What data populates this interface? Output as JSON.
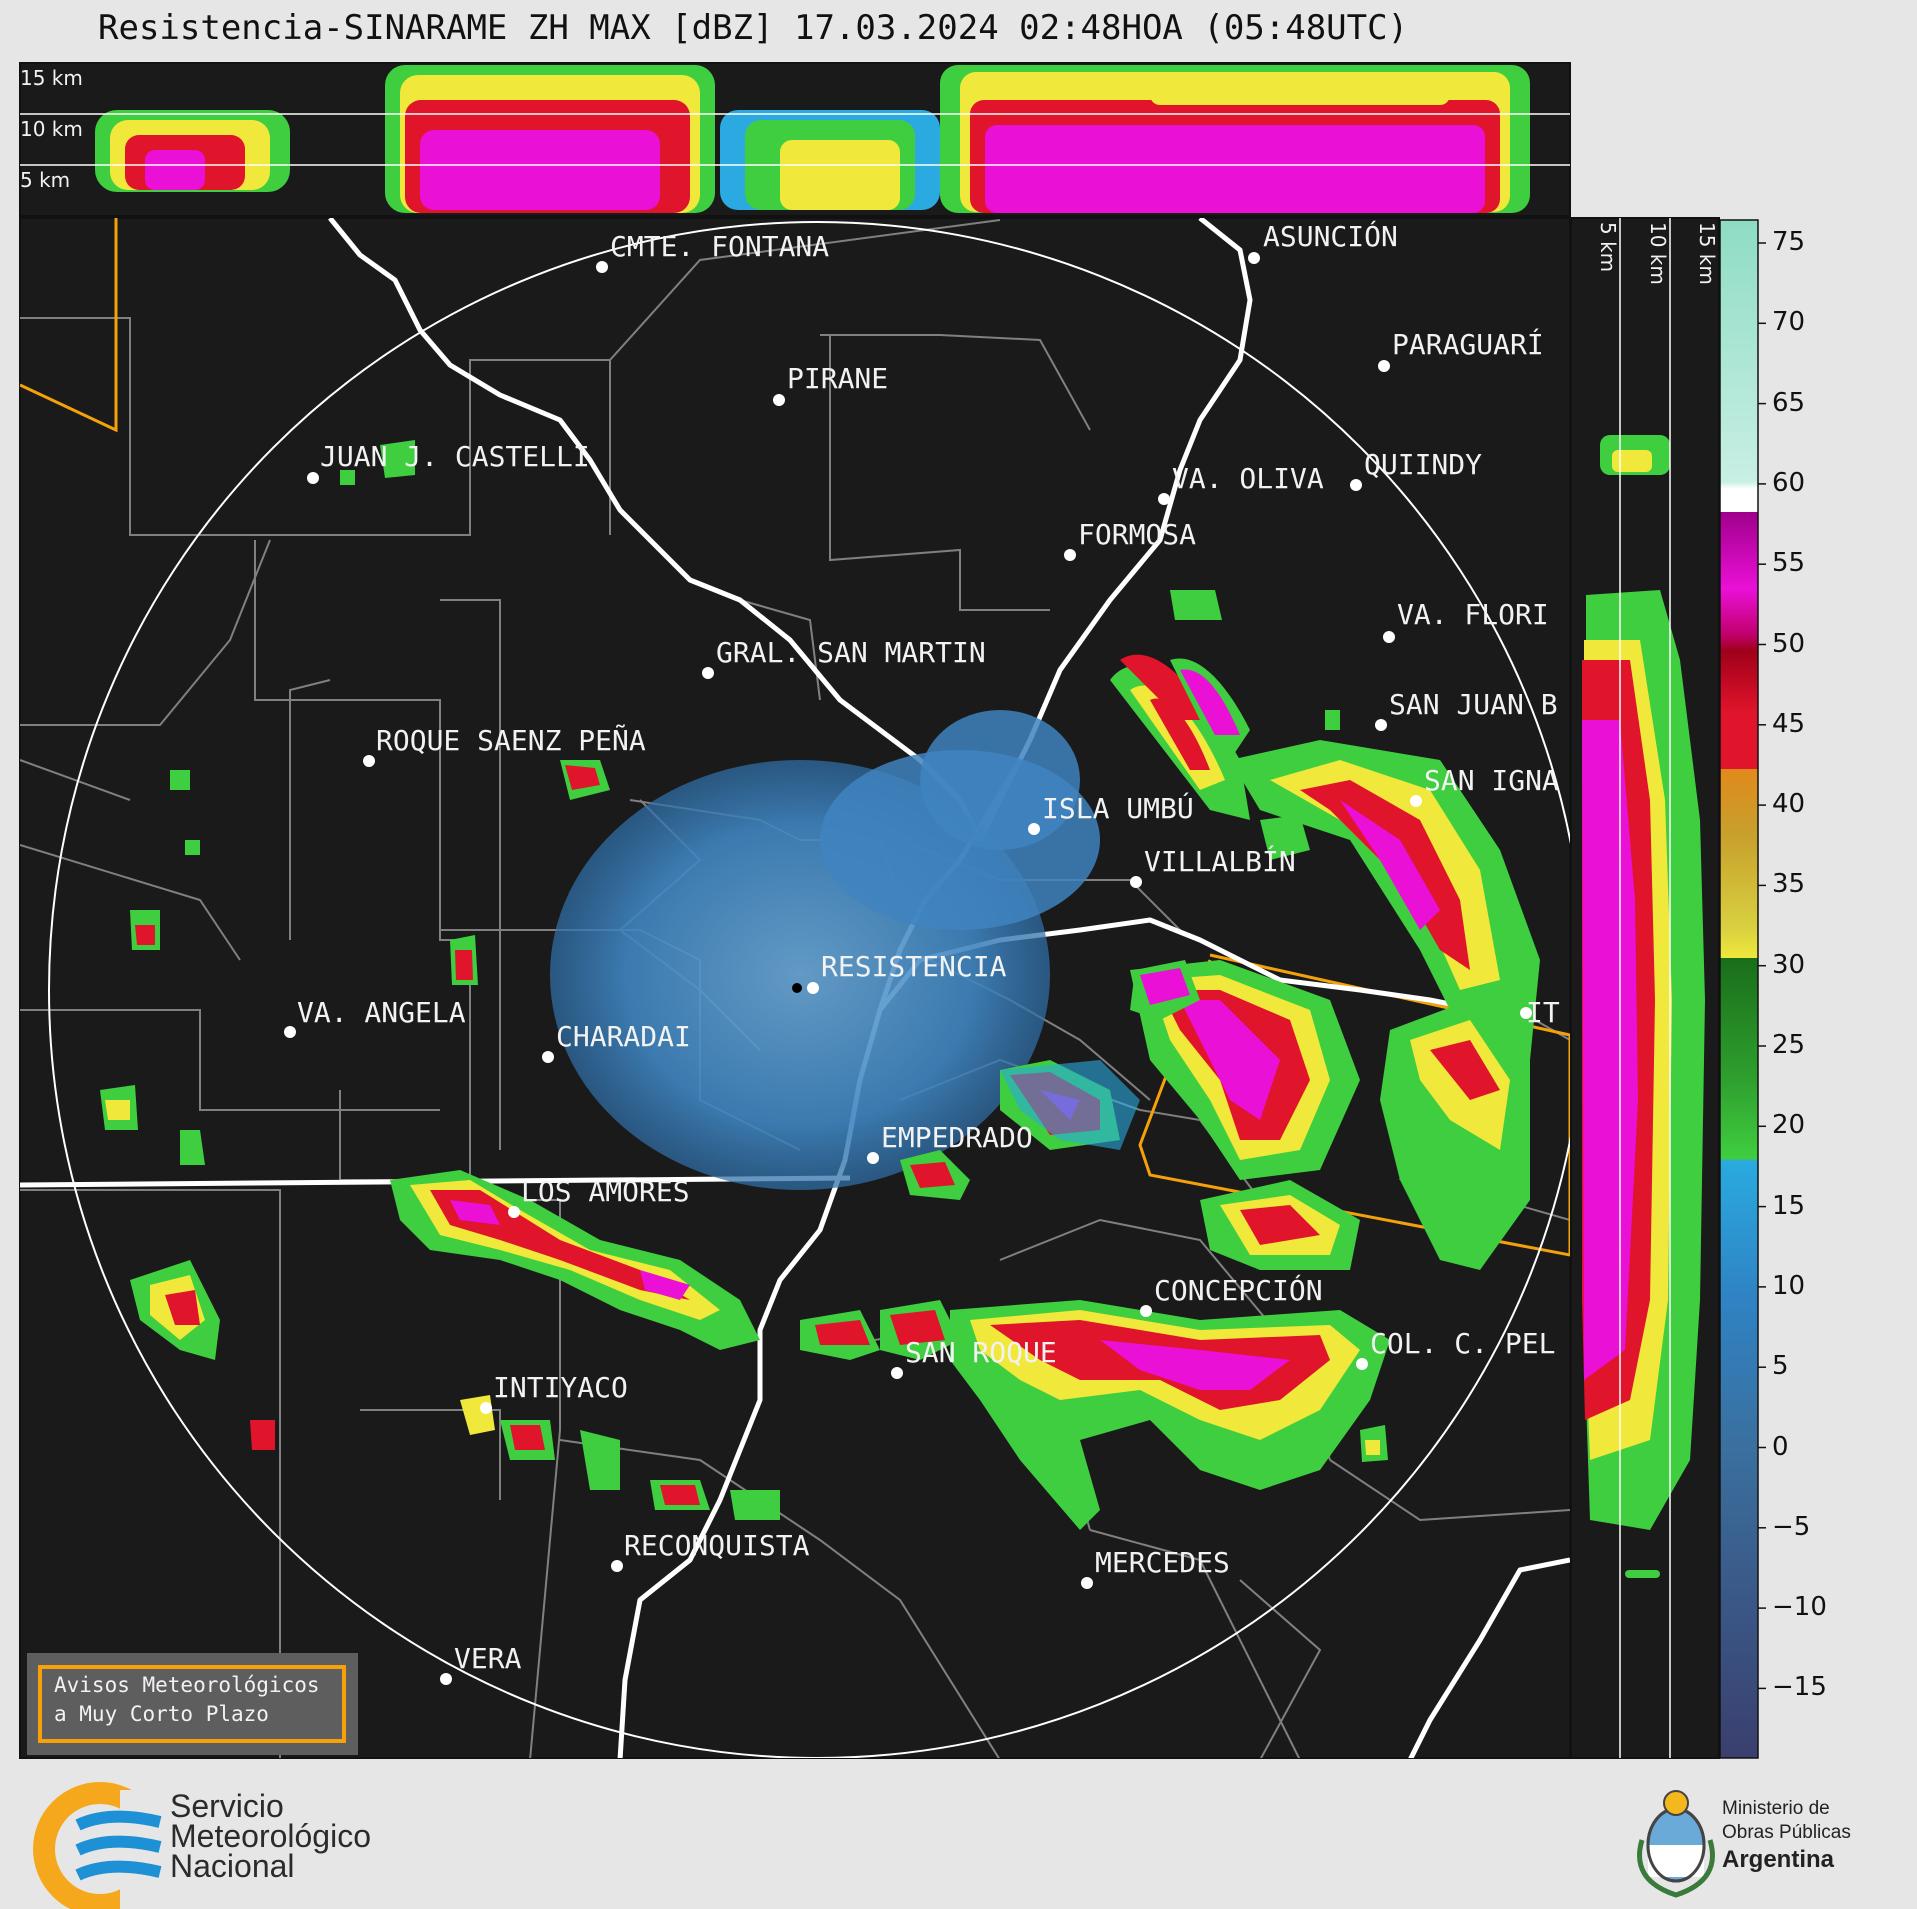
{
  "title": "Resistencia-SINARAME ZH MAX [dBZ] 17.03.2024 02:48HOA (05:48UTC)",
  "height_panel_labels": [
    "15 km",
    "10 km",
    "5 km"
  ],
  "side_panel_labels": [
    "5 km",
    "10 km",
    "15 km"
  ],
  "colorbar": {
    "ticks": [
      "75",
      "70",
      "65",
      "60",
      "55",
      "50",
      "45",
      "40",
      "35",
      "30",
      "25",
      "20",
      "15",
      "10",
      "5",
      "0",
      "−5",
      "−10",
      "−15"
    ],
    "colors": {
      "low": "#3a4170",
      "blue": "#2f83c4",
      "cyan": "#2aaae0",
      "green": "#3fce3f",
      "dark_green": "#1a6e1a",
      "yellow": "#f0e83a",
      "olive": "#b6b23c",
      "orange": "#e08a1c",
      "red": "#e0142a",
      "dark_red": "#a0001a",
      "magenta": "#ea10d6",
      "purple": "#a0008c",
      "white": "#ffffff",
      "mint": "#8edcc4"
    }
  },
  "cities": [
    "CMTE. FONTANA",
    "PIRANE",
    "JUAN J. CASTELLI",
    "ASUNCIÓN",
    "PARAGUARÍ",
    "VA. OLIVA",
    "QUIINDY",
    "FORMOSA",
    "VA. FLORI",
    "GRAL. SAN MARTIN",
    "SAN JUAN B",
    "ROQUE SAENZ PEÑA",
    "SAN IGNA",
    "ISLA UMBÚ",
    "VILLALBÍN",
    "RESISTENCIA",
    "VA. ANGELA",
    "CHARADAI",
    "IT",
    "EMPEDRADO",
    "LOS AMORES",
    "CONCEPCIÓN",
    "SAN ROQUE",
    "COL. C. PEL",
    "INTIYACO",
    "RECONQUISTA",
    "MERCEDES",
    "VERA"
  ],
  "avisos": {
    "line1": "Avisos Meteorológicos",
    "line2": "a Muy Corto Plazo"
  },
  "smn": {
    "line1": "Servicio",
    "line2": "Meteorológico",
    "line3": "Nacional"
  },
  "ministerio": {
    "line1": "Ministerio de",
    "line2": "Obras Públicas",
    "line3": "Argentina"
  }
}
